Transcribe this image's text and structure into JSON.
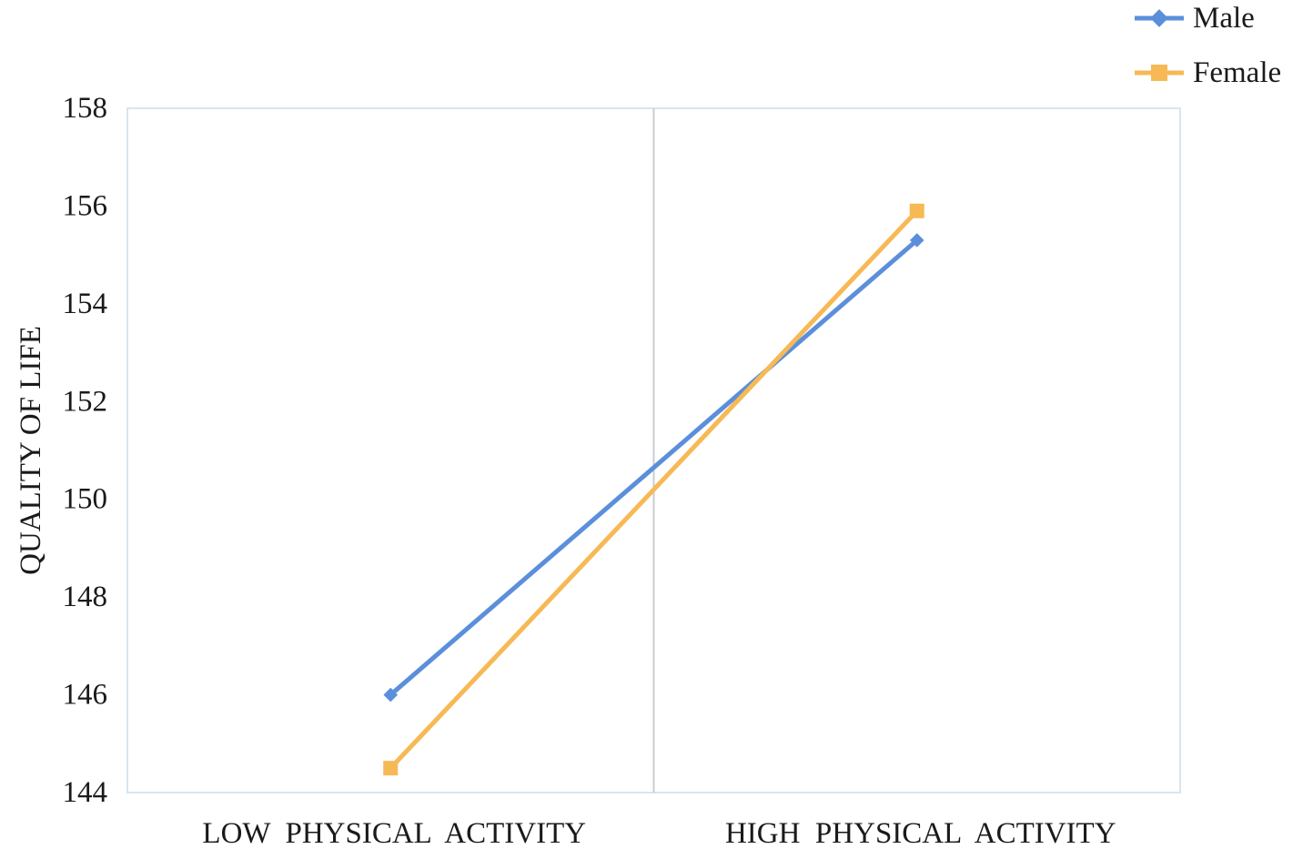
{
  "chart_data": {
    "type": "line",
    "categories": [
      "LOW  PHYSICAL  ACTIVITY",
      "HIGH  PHYSICAL  ACTIVITY"
    ],
    "series": [
      {
        "name": "Male",
        "values": [
          146.0,
          155.3
        ],
        "color": "#5B8FDB",
        "marker": "diamond"
      },
      {
        "name": "Female",
        "values": [
          144.5,
          155.9
        ],
        "color": "#F7B955",
        "marker": "square"
      }
    ],
    "title": "",
    "xlabel": "",
    "ylabel": "QUALITY OF LIFE",
    "ylim": [
      144,
      158
    ],
    "yticks": [
      "144",
      "146",
      "148",
      "150",
      "152",
      "154",
      "156",
      "158"
    ],
    "legend_position": "top-right",
    "grid": false,
    "category_divider": true,
    "plot_border_color": "#D6E6F2",
    "divider_color": "#C8CDD2"
  }
}
